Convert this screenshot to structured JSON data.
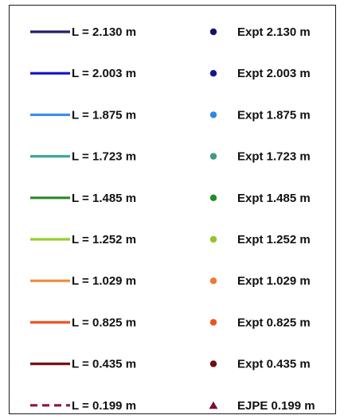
{
  "chart_data": {
    "type": "line",
    "legend_only": true,
    "legend": {
      "line_entries": [
        {
          "label": "L = 2.130 m",
          "color": "#1f1f6b",
          "dash": "solid"
        },
        {
          "label": "L = 2.003 m",
          "color": "#1111c8",
          "dash": "solid"
        },
        {
          "label": "L = 1.875 m",
          "color": "#3b8ff0",
          "dash": "solid"
        },
        {
          "label": "L = 1.723 m",
          "color": "#3aaaa0",
          "dash": "solid"
        },
        {
          "label": "L = 1.485 m",
          "color": "#2a8a28",
          "dash": "solid"
        },
        {
          "label": "L = 1.252 m",
          "color": "#9acd28",
          "dash": "solid"
        },
        {
          "label": "L = 1.029 m",
          "color": "#f08a38",
          "dash": "solid"
        },
        {
          "label": "L = 0.825 m",
          "color": "#ee5525",
          "dash": "solid"
        },
        {
          "label": "L = 0.435 m",
          "color": "#7a1010",
          "dash": "solid"
        },
        {
          "label": "L = 0.199 m",
          "color": "#8a1545",
          "dash": "dashed"
        }
      ],
      "marker_entries": [
        {
          "label": "Expt 2.130 m",
          "color": "#14146b",
          "marker": "circle"
        },
        {
          "label": "Expt 2.003 m",
          "color": "#0c1a8a",
          "marker": "circle"
        },
        {
          "label": "Expt 1.875 m",
          "color": "#2f86e8",
          "marker": "circle"
        },
        {
          "label": "Expt 1.723 m",
          "color": "#3f9a88",
          "marker": "circle"
        },
        {
          "label": "Expt 1.485 m",
          "color": "#248a24",
          "marker": "circle"
        },
        {
          "label": "Expt 1.252 m",
          "color": "#94c428",
          "marker": "circle"
        },
        {
          "label": "Expt 1.029 m",
          "color": "#f07a30",
          "marker": "circle"
        },
        {
          "label": "Expt 0.825 m",
          "color": "#e85520",
          "marker": "circle"
        },
        {
          "label": "Expt 0.435 m",
          "color": "#701010",
          "marker": "circle"
        },
        {
          "label": "EJPE 0.199 m",
          "color": "#7a1030",
          "marker": "triangle"
        }
      ]
    }
  }
}
